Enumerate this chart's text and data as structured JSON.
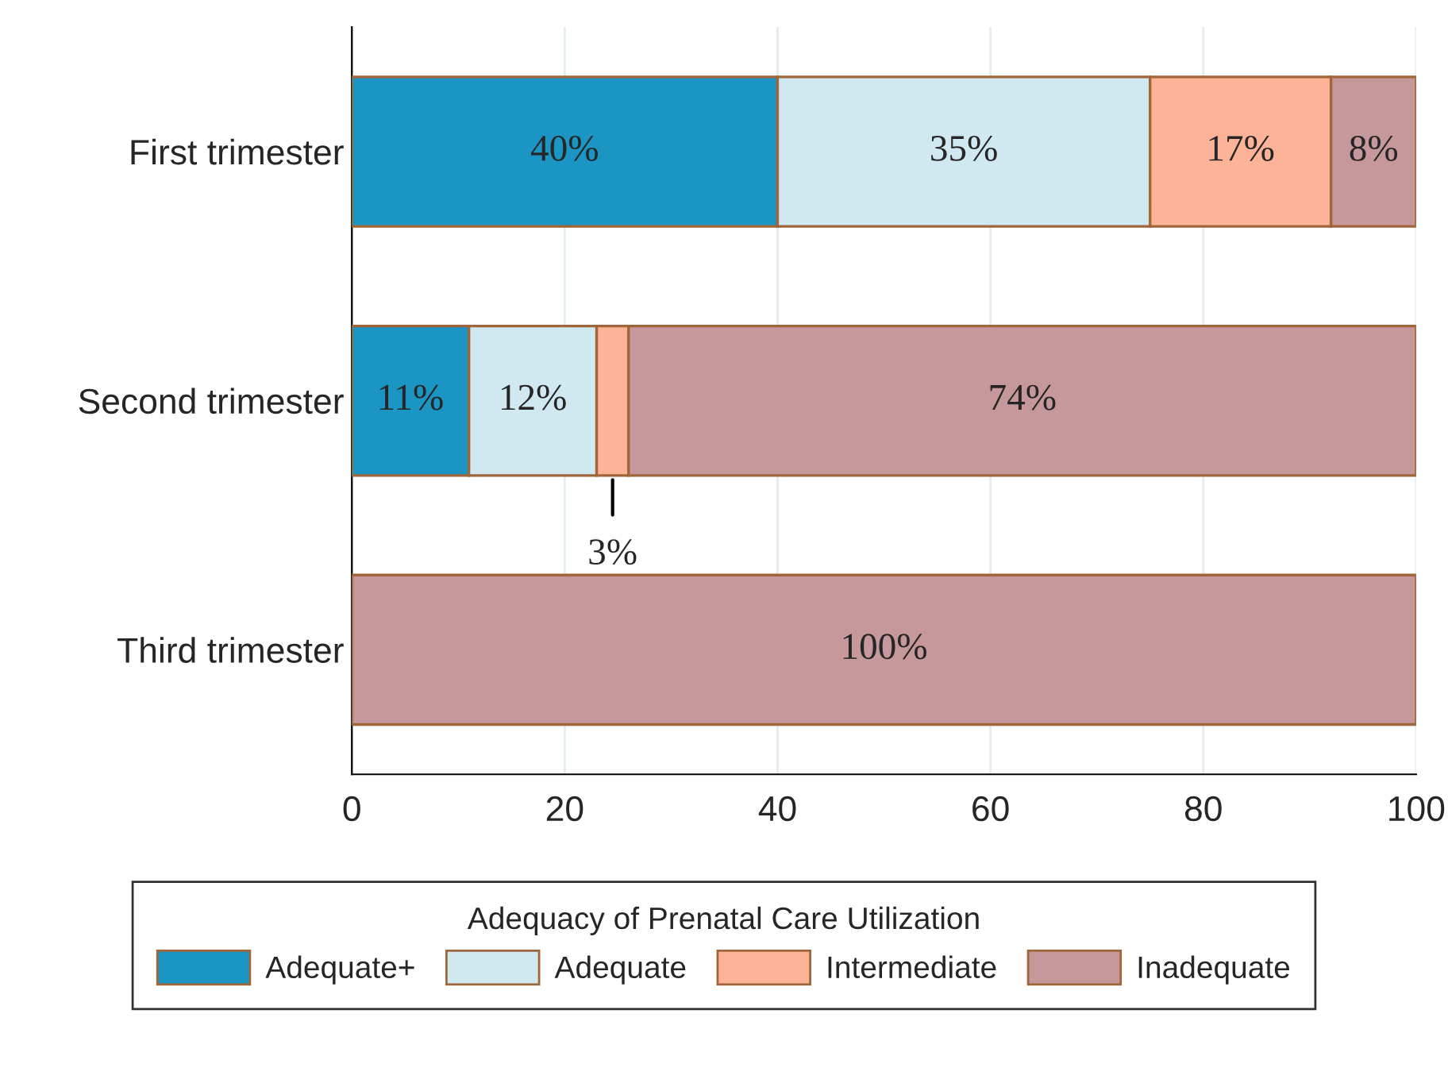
{
  "chart_data": {
    "type": "bar",
    "orientation": "horizontal",
    "stacked": true,
    "categories": [
      "First trimester",
      "Second trimester",
      "Third trimester"
    ],
    "series": [
      {
        "name": "Adequate+",
        "color": "#1b95c3",
        "values": [
          40,
          11,
          null
        ],
        "value_labels": [
          "40%",
          "11%",
          null
        ]
      },
      {
        "name": "Adequate",
        "color": "#d0e8ef",
        "values": [
          35,
          12,
          null
        ],
        "value_labels": [
          "35%",
          "12%",
          null
        ]
      },
      {
        "name": "Intermediate",
        "color": "#fdb398",
        "values": [
          17,
          3,
          null
        ],
        "value_labels": [
          "17%",
          "3%",
          null
        ]
      },
      {
        "name": "Inadequate",
        "color": "#c6989b",
        "values": [
          8,
          74,
          100
        ],
        "value_labels": [
          "8%",
          "74%",
          "100%"
        ]
      }
    ],
    "legend_title": "Adequacy of Prenatal Care Utilization",
    "xlim": [
      0,
      100
    ],
    "xticks": [
      0,
      20,
      40,
      60,
      80,
      100
    ],
    "grid": "x",
    "legend": "bottom"
  }
}
